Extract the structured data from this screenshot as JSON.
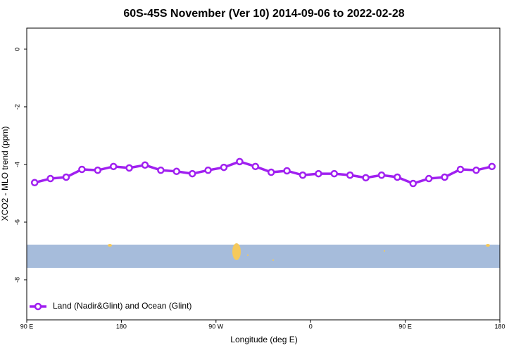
{
  "chart_data": {
    "type": "line",
    "title": "60S-45S November (Ver 10)   2014-09-06 to 2022-02-28",
    "x_label": "Longitude (deg E)",
    "y_label": "XCO2 - MLO trend (ppm)",
    "x": [
      97.5,
      112.5,
      127.5,
      142.5,
      157.5,
      172.5,
      187.5,
      202.5,
      217.5,
      232.5,
      247.5,
      262.5,
      277.5,
      292.5,
      307.5,
      322.5,
      337.5,
      352.5,
      367.5,
      382.5,
      397.5,
      412.5,
      427.5,
      442.5,
      457.5,
      472.5,
      487.5,
      502.5,
      517.5,
      532.5
    ],
    "series": [
      {
        "name": "Land (Nadir&Glint) and Ocean (Glint)",
        "color": "#a020f0",
        "values": [
          -4.63,
          -4.49,
          -4.44,
          -4.17,
          -4.2,
          -4.07,
          -4.12,
          -4.02,
          -4.2,
          -4.24,
          -4.32,
          -4.2,
          -4.1,
          -3.9,
          -4.07,
          -4.27,
          -4.22,
          -4.37,
          -4.32,
          -4.32,
          -4.37,
          -4.46,
          -4.37,
          -4.44,
          -4.66,
          -4.49,
          -4.44,
          -4.17,
          -4.2,
          -4.07
        ]
      }
    ],
    "xlim": [
      90,
      540
    ],
    "xticks": [
      {
        "value": 90,
        "label": "90 E"
      },
      180,
      {
        "value": 270,
        "label": "90 W"
      },
      {
        "value": 360,
        "label": "0"
      },
      {
        "value": 450,
        "label": "90 E"
      },
      {
        "value": 540,
        "label": "180"
      }
    ],
    "ylim": [
      -9.39,
      0.73
    ],
    "yticks": [
      0,
      -2,
      -4,
      -6,
      -8
    ],
    "legend": "bottom-left"
  }
}
